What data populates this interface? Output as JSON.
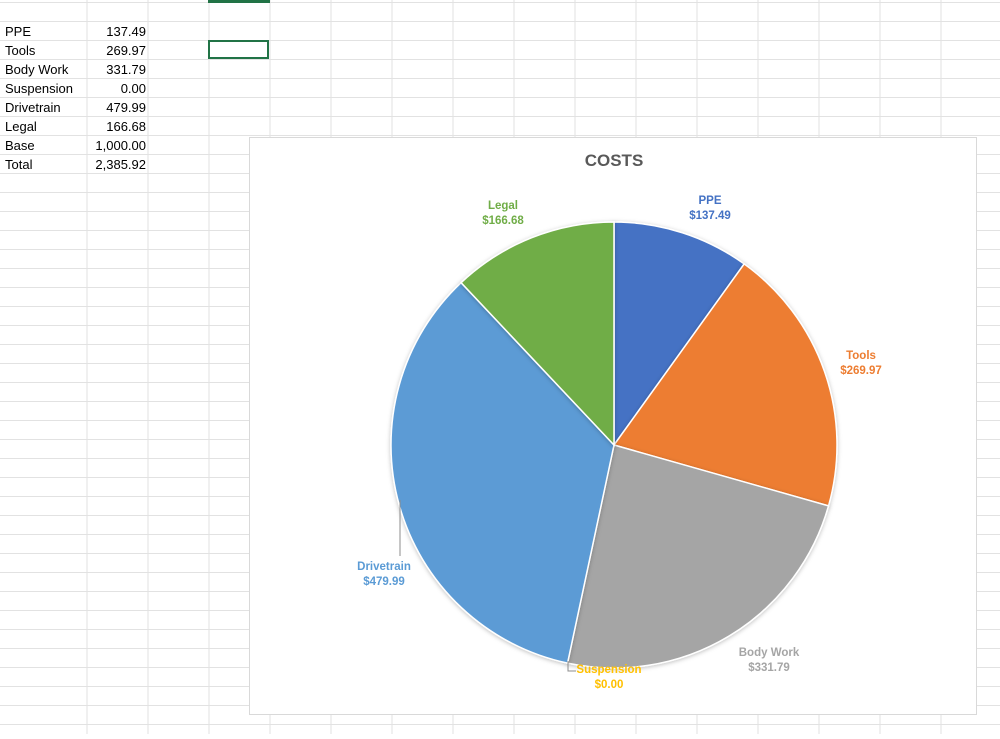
{
  "spreadsheet": {
    "rows": [
      {
        "label": "PPE",
        "value": "137.49"
      },
      {
        "label": "Tools",
        "value": "269.97"
      },
      {
        "label": "Body Work",
        "value": "331.79"
      },
      {
        "label": "Suspension",
        "value": "0.00"
      },
      {
        "label": "Drivetrain",
        "value": "479.99"
      },
      {
        "label": "Legal",
        "value": "166.68"
      },
      {
        "label": "Base",
        "value": "1,000.00"
      },
      {
        "label": "Total",
        "value": "2,385.92"
      }
    ]
  },
  "chart_data": {
    "type": "pie",
    "title": "COSTS",
    "categories": [
      "PPE",
      "Tools",
      "Body Work",
      "Suspension",
      "Drivetrain",
      "Legal"
    ],
    "values": [
      137.49,
      269.97,
      331.79,
      0.0,
      479.99,
      166.68
    ],
    "value_labels": [
      "$137.49",
      "$269.97",
      "$331.79",
      "$0.00",
      "$479.99",
      "$166.68"
    ],
    "colors": [
      "#4472C4",
      "#ED7D31",
      "#A5A5A5",
      "#FFC000",
      "#5B9BD5",
      "#70AD47"
    ],
    "label_colors": [
      "#4472C4",
      "#ED7D31",
      "#A5A5A5",
      "#FFC000",
      "#5B9BD5",
      "#70AD47"
    ],
    "legend": "none"
  }
}
